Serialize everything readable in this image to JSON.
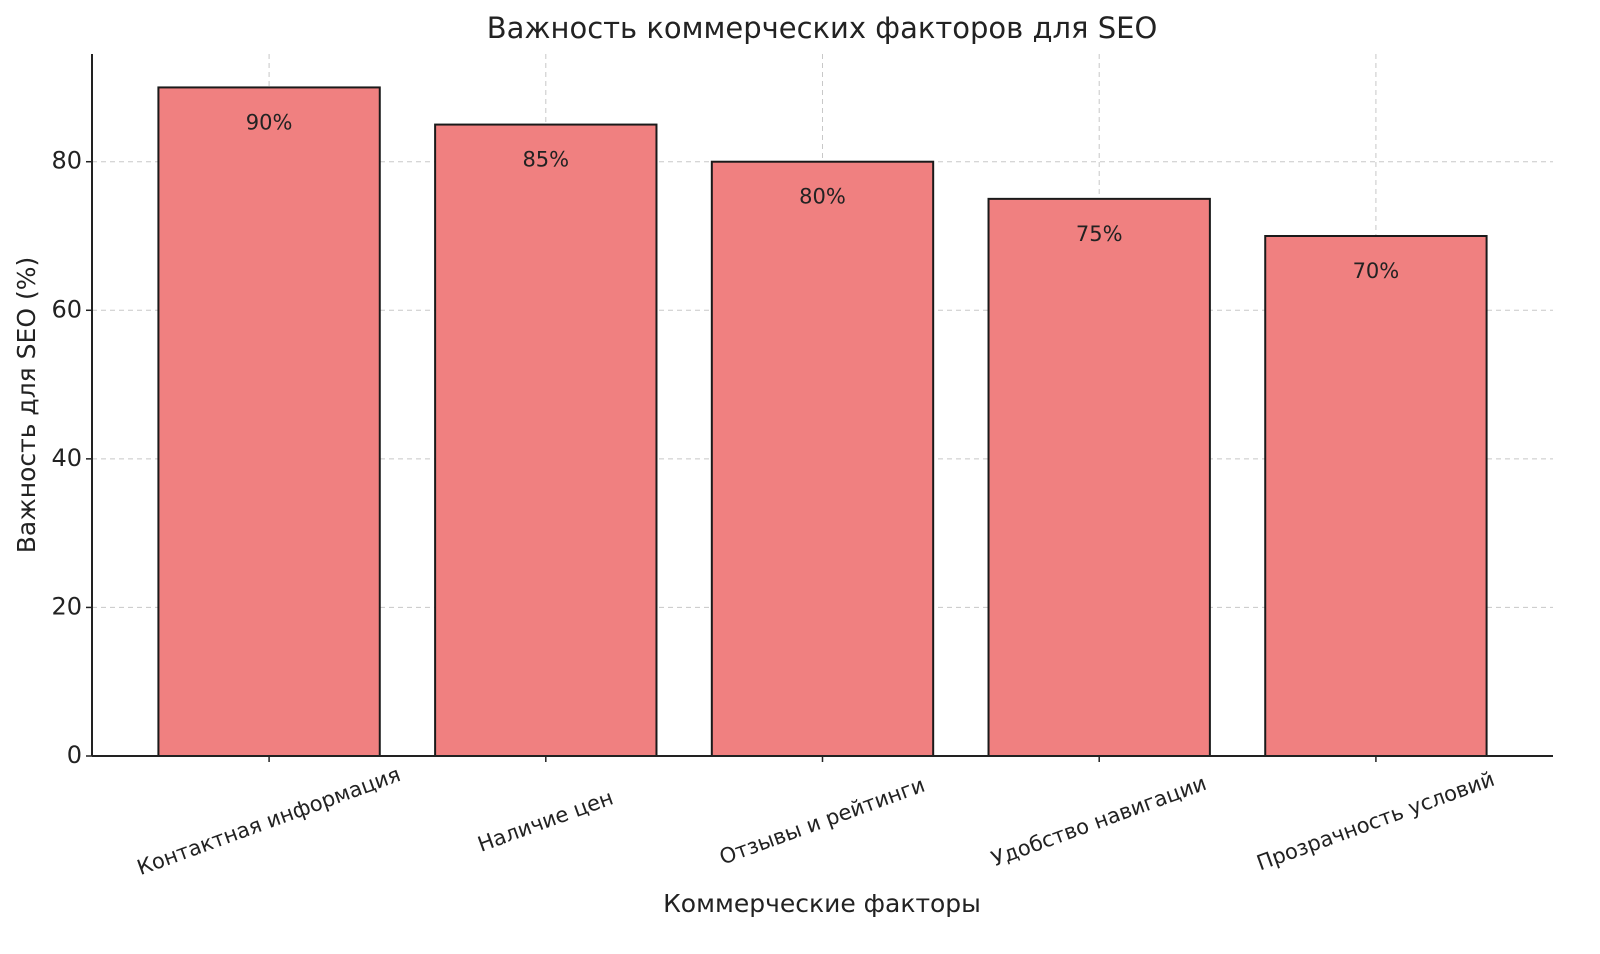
{
  "chart_data": {
    "type": "bar",
    "title": "Важность коммерческих факторов для SEO",
    "x_label": "Коммерческие факторы",
    "y_label": "Важность для SEO (%)",
    "categories": [
      "Контактная информация",
      "Наличие цен",
      "Отзывы и рейтинги",
      "Удобство навигации",
      "Прозрачность условий"
    ],
    "values": [
      90,
      85,
      80,
      75,
      70
    ],
    "value_labels": [
      "90%",
      "85%",
      "80%",
      "75%",
      "70%"
    ],
    "color": "#f08080",
    "ylim": [
      0,
      94.5
    ],
    "yticks": [
      0,
      20,
      40,
      60,
      80
    ],
    "grid": true
  }
}
